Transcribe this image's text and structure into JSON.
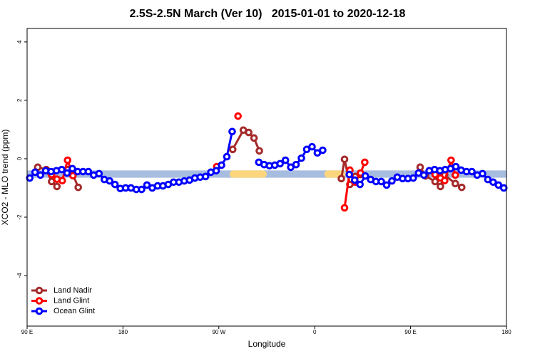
{
  "chart_data": {
    "type": "line",
    "title": "2.5S-2.5N March (Ver 10)   2015-01-01 to 2020-12-18",
    "x_label": "Longitude",
    "y_label": "XCO2 - MLO trend (ppm)",
    "xlim": [
      90,
      540
    ],
    "xticks": [
      {
        "value": 90,
        "label": "90 E"
      },
      180,
      {
        "value": 270,
        "label": "90 W"
      },
      {
        "value": 360,
        "label": "0"
      },
      {
        "value": 450,
        "label": "90 E"
      },
      {
        "value": 540,
        "label": "180"
      }
    ],
    "ylim": [
      -5.73,
      4.46
    ],
    "yticks": [
      -4,
      -2,
      0,
      2,
      4
    ],
    "legend": "bottom-left",
    "band": {
      "ylim": [
        -0.65,
        -0.4
      ],
      "color": "#a7bde0",
      "land_segments": [
        [
          280,
          315
        ],
        [
          369,
          389
        ]
      ],
      "land_color": "#fbd67c"
    },
    "series": [
      {
        "name": "Land Nadir",
        "color": "#a52a2a",
        "x": [
          100,
          108,
          113,
          118,
          null,
          128,
          133,
          138,
          null,
          283,
          293,
          298,
          303,
          308,
          null,
          385,
          388,
          393,
          398,
          403,
          null,
          459,
          464,
          473,
          478,
          482,
          492,
          498
        ],
        "values": [
          -0.29,
          -0.37,
          -0.78,
          -0.95,
          null,
          -0.37,
          -0.54,
          -0.98,
          null,
          0.32,
          0.98,
          0.9,
          0.71,
          0.27,
          null,
          -0.68,
          -0.02,
          -0.88,
          -0.61,
          -0.54,
          null,
          -0.29,
          -0.59,
          -0.78,
          -0.95,
          -0.56,
          -0.85,
          -0.98
        ]
      },
      {
        "name": "Land Glint",
        "color": "#ff0000",
        "x": [
          113,
          118,
          123,
          128,
          133,
          null,
          268,
          null,
          288,
          null,
          388,
          393,
          398,
          403,
          407,
          null,
          473,
          478,
          482,
          488,
          492
        ],
        "values": [
          -0.54,
          -0.7,
          -0.75,
          -0.05,
          -0.58,
          null,
          -0.27,
          null,
          1.46,
          null,
          -1.68,
          -0.39,
          -0.8,
          -0.49,
          -0.12,
          null,
          -0.54,
          -0.66,
          -0.75,
          -0.05,
          -0.56
        ]
      },
      {
        "name": "Ocean Glint",
        "color": "#0000ff",
        "x": [
          92.5,
          97.5,
          102.5,
          107.5,
          112.5,
          117.5,
          122.5,
          127.5,
          132.5,
          137.5,
          142.5,
          147.5,
          152.5,
          157.5,
          162.5,
          167.5,
          172.5,
          177.5,
          182.5,
          187.5,
          192.5,
          197.5,
          202.5,
          207.5,
          212.5,
          217.5,
          222.5,
          227.5,
          232.5,
          237.5,
          242.5,
          247.5,
          252.5,
          257.5,
          262.5,
          267.5,
          272.5,
          277.5,
          282.5,
          null,
          307.5,
          312.5,
          317.5,
          322.5,
          327.5,
          332.5,
          337.5,
          342.5,
          347.5,
          352.5,
          357.5,
          362.5,
          367.5,
          null,
          392.5,
          397.5,
          402.5,
          407.5,
          412.5,
          417.5,
          422.5,
          427.5,
          432.5,
          437.5,
          442.5,
          447.5,
          452.5,
          457.5,
          462.5,
          467.5,
          472.5,
          477.5,
          482.5,
          487.5,
          492.5,
          497.5,
          502.5,
          507.5,
          512.5,
          517.5,
          522.5,
          527.5,
          532.5,
          537.5
        ],
        "values": [
          -0.66,
          -0.46,
          -0.56,
          -0.41,
          -0.44,
          -0.41,
          -0.37,
          -0.49,
          -0.34,
          -0.44,
          -0.44,
          -0.44,
          -0.56,
          -0.51,
          -0.71,
          -0.76,
          -0.88,
          -1.02,
          -1.0,
          -1.0,
          -1.05,
          -1.05,
          -0.9,
          -1.0,
          -0.93,
          -0.93,
          -0.88,
          -0.8,
          -0.8,
          -0.76,
          -0.73,
          -0.66,
          -0.63,
          -0.61,
          -0.46,
          -0.41,
          -0.22,
          0.07,
          0.93,
          null,
          -0.12,
          -0.2,
          -0.24,
          -0.22,
          -0.17,
          -0.05,
          -0.29,
          -0.2,
          0.02,
          0.32,
          0.41,
          0.2,
          0.29,
          null,
          -0.54,
          -0.73,
          -0.88,
          -0.59,
          -0.71,
          -0.78,
          -0.78,
          -0.9,
          -0.76,
          -0.63,
          -0.68,
          -0.68,
          -0.66,
          -0.49,
          -0.56,
          -0.41,
          -0.37,
          -0.41,
          -0.37,
          -0.34,
          -0.27,
          -0.39,
          -0.44,
          -0.44,
          -0.56,
          -0.51,
          -0.71,
          -0.8,
          -0.9,
          -1.0
        ]
      }
    ]
  }
}
